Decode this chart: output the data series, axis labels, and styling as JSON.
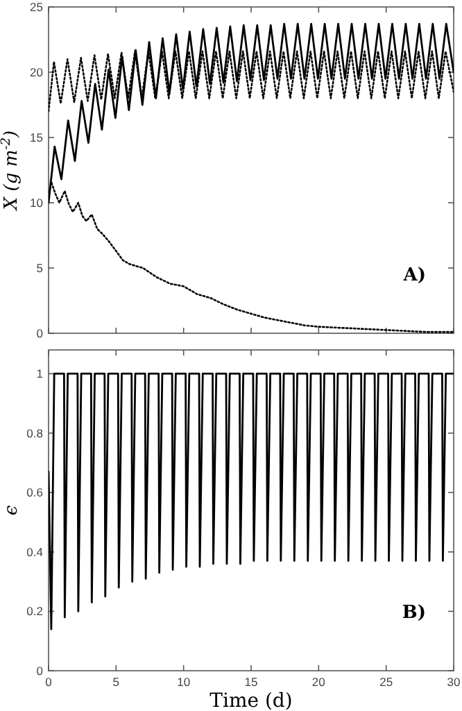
{
  "chart_data": [
    {
      "type": "line",
      "ylabel": "X (g m$^{-2}$)",
      "xlim": [
        0,
        30
      ],
      "xticks": [
        0,
        5,
        10,
        15,
        20,
        25,
        30
      ],
      "ylim": [
        0,
        25
      ],
      "yticks": [
        0,
        5,
        10,
        15,
        20,
        25
      ],
      "tick_labels": "y",
      "marker": "none",
      "grid": false,
      "annotations": [
        "A)"
      ],
      "series": [
        {
          "color": "#000000",
          "line_style": "solid",
          "x": [
            0,
            0.45,
            0.95,
            1.45,
            1.95,
            2.45,
            2.95,
            3.45,
            3.95,
            4.45,
            4.95,
            5.45,
            5.95,
            6.45,
            6.95,
            7.45,
            7.95,
            8.45,
            8.95,
            9.45,
            9.95,
            10.45,
            10.95,
            11.45,
            11.95,
            12.45,
            12.95,
            13.45,
            13.95,
            14.45,
            14.95,
            15.45,
            15.95,
            16.45,
            16.95,
            17.45,
            17.95,
            18.45,
            18.95,
            19.45,
            19.95,
            20.45,
            20.95,
            21.45,
            21.95,
            22.45,
            22.95,
            23.45,
            23.95,
            24.45,
            24.95,
            25.45,
            25.95,
            26.45,
            26.95,
            27.45,
            27.95,
            28.45,
            28.95,
            29.45,
            30
          ],
          "values": [
            10,
            14.3,
            11.8,
            16.3,
            13.2,
            17.8,
            14.6,
            19.1,
            15.6,
            20.2,
            16.5,
            21.2,
            17.1,
            21.7,
            17.5,
            22.3,
            18.0,
            22.6,
            18.4,
            22.9,
            18.7,
            23.1,
            18.9,
            23.3,
            19.1,
            23.4,
            19.2,
            23.5,
            19.3,
            23.6,
            19.4,
            23.6,
            19.4,
            23.6,
            19.5,
            23.7,
            19.5,
            23.7,
            19.5,
            23.7,
            19.5,
            23.7,
            19.5,
            23.7,
            19.5,
            23.7,
            19.5,
            23.7,
            19.5,
            23.7,
            19.5,
            23.7,
            19.5,
            23.7,
            19.5,
            23.7,
            19.5,
            23.7,
            19.5,
            23.7,
            20.0
          ]
        },
        {
          "color": "#000000",
          "line_style": "dotted",
          "x": [
            0,
            0.4,
            0.9,
            1.4,
            1.9,
            2.4,
            2.9,
            3.4,
            3.9,
            4.4,
            4.9,
            5.4,
            5.9,
            6.4,
            6.9,
            7.4,
            7.9,
            8.4,
            8.9,
            9.4,
            9.9,
            10.4,
            10.9,
            11.4,
            11.9,
            12.4,
            12.9,
            13.4,
            13.9,
            14.4,
            14.9,
            15.4,
            15.9,
            16.4,
            16.9,
            17.4,
            17.9,
            18.4,
            18.9,
            19.4,
            19.9,
            20.4,
            20.9,
            21.4,
            21.9,
            22.4,
            22.9,
            23.4,
            23.9,
            24.4,
            24.9,
            25.4,
            25.9,
            26.4,
            26.9,
            27.4,
            27.9,
            28.4,
            28.9,
            29.4,
            30
          ],
          "values": [
            17,
            20.8,
            17.6,
            21.0,
            17.7,
            21.1,
            17.8,
            21.3,
            17.9,
            21.4,
            18.0,
            21.5,
            18.0,
            21.6,
            18.0,
            21.6,
            18.0,
            21.6,
            18.0,
            21.6,
            18.0,
            21.6,
            18.0,
            21.6,
            18.0,
            21.6,
            18.0,
            21.6,
            18.0,
            21.6,
            18.0,
            21.6,
            18.0,
            21.6,
            18.0,
            21.6,
            18.0,
            21.6,
            18.0,
            21.6,
            18.0,
            21.6,
            18.0,
            21.6,
            18.0,
            21.6,
            18.0,
            21.6,
            18.0,
            21.6,
            18.0,
            21.6,
            18.0,
            21.6,
            18.0,
            21.6,
            18.0,
            21.6,
            18.0,
            21.6,
            18.5
          ]
        },
        {
          "color": "#000000",
          "line_style": "dotted",
          "x": [
            0,
            0.2,
            0.5,
            0.8,
            1.2,
            1.5,
            1.8,
            2.2,
            2.5,
            2.8,
            3.2,
            3.6,
            4,
            4.5,
            5,
            5.5,
            6,
            7,
            8,
            9,
            10,
            11,
            12,
            13,
            14,
            15,
            16,
            17,
            18,
            19,
            20,
            22,
            24,
            26,
            28,
            30
          ],
          "values": [
            10.5,
            11.6,
            10.7,
            10.0,
            10.9,
            9.9,
            9.3,
            10.0,
            9.0,
            8.6,
            9.1,
            8.0,
            7.6,
            7.0,
            6.3,
            5.6,
            5.3,
            5.0,
            4.3,
            3.8,
            3.6,
            3.0,
            2.7,
            2.2,
            1.8,
            1.5,
            1.2,
            1.0,
            0.8,
            0.6,
            0.5,
            0.4,
            0.3,
            0.2,
            0.1,
            0.1
          ]
        }
      ]
    },
    {
      "type": "line",
      "ylabel": "ϵ",
      "xlabel": "Time (d)",
      "xlim": [
        0,
        30
      ],
      "xticks": [
        0,
        5,
        10,
        15,
        20,
        25,
        30
      ],
      "ylim": [
        0,
        1.08
      ],
      "yticks": [
        0,
        0.2,
        0.4,
        0.6,
        0.8,
        1
      ],
      "marker": "none",
      "grid": false,
      "annotations": [
        "B)"
      ],
      "series": [
        {
          "color": "#000000",
          "line_style": "solid",
          "x": [
            0,
            0.2,
            0.42,
            1.15,
            1.2,
            1.42,
            2.15,
            2.2,
            2.42,
            3.15,
            3.2,
            3.42,
            4.15,
            4.2,
            4.42,
            5.15,
            5.2,
            5.42,
            6.15,
            6.2,
            6.42,
            7.15,
            7.2,
            7.42,
            8.15,
            8.2,
            8.42,
            9.15,
            9.2,
            9.42,
            10.15,
            10.2,
            10.42,
            11.15,
            11.2,
            11.42,
            12.15,
            12.2,
            12.42,
            13.15,
            13.2,
            13.42,
            14.15,
            14.2,
            14.42,
            15.15,
            15.2,
            15.42,
            16.15,
            16.2,
            16.42,
            17.15,
            17.2,
            17.42,
            18.15,
            18.2,
            18.42,
            19.15,
            19.2,
            19.42,
            20.15,
            20.2,
            20.42,
            21.15,
            21.2,
            21.42,
            22.15,
            22.2,
            22.42,
            23.15,
            23.2,
            23.42,
            24.15,
            24.2,
            24.42,
            25.15,
            25.2,
            25.42,
            26.15,
            26.2,
            26.42,
            27.15,
            27.2,
            27.42,
            28.15,
            28.2,
            28.42,
            29.15,
            29.2,
            29.42,
            30
          ],
          "values": [
            0.67,
            0.14,
            1,
            1,
            0.18,
            1,
            1,
            0.2,
            1,
            1,
            0.23,
            1,
            1,
            0.25,
            1,
            1,
            0.28,
            1,
            1,
            0.3,
            1,
            1,
            0.31,
            1,
            1,
            0.33,
            1,
            1,
            0.34,
            1,
            1,
            0.35,
            1,
            1,
            0.35,
            1,
            1,
            0.36,
            1,
            1,
            0.36,
            1,
            1,
            0.36,
            1,
            1,
            0.37,
            1,
            1,
            0.37,
            1,
            1,
            0.37,
            1,
            1,
            0.37,
            1,
            1,
            0.37,
            1,
            1,
            0.37,
            1,
            1,
            0.37,
            1,
            1,
            0.37,
            1,
            1,
            0.37,
            1,
            1,
            0.37,
            1,
            1,
            0.37,
            1,
            1,
            0.37,
            1,
            1,
            0.37,
            1,
            1,
            0.37,
            1,
            1,
            0.37,
            1,
            1
          ]
        }
      ]
    }
  ]
}
